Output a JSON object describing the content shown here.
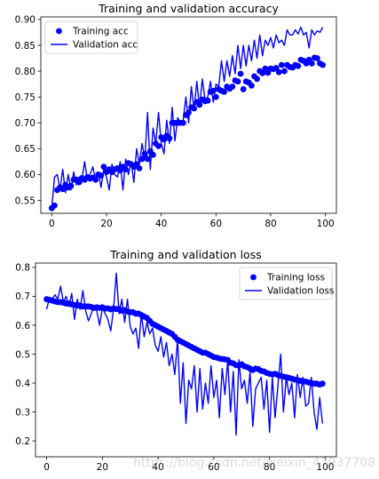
{
  "figure": {
    "watermark": "https://blog.csdn.net/weixin_43937708"
  },
  "chart_data": [
    {
      "type": "line",
      "title": "Training and validation accuracy",
      "xlim": [
        -4,
        104
      ],
      "ylim": [
        0.525,
        0.905
      ],
      "xticks": [
        "0",
        "20",
        "40",
        "60",
        "80",
        "100"
      ],
      "yticks": [
        "0.55",
        "0.60",
        "0.65",
        "0.70",
        "0.75",
        "0.80",
        "0.85",
        "0.90"
      ],
      "legend_position": "upper-left",
      "series": [
        {
          "name": "Training acc",
          "style": "dots",
          "color": "#0000ff",
          "x_start": 0,
          "x_step": 1,
          "values": [
            0.535,
            0.54,
            0.57,
            0.575,
            0.572,
            0.58,
            0.575,
            0.578,
            0.59,
            0.59,
            0.585,
            0.593,
            0.59,
            0.595,
            0.592,
            0.594,
            0.59,
            0.6,
            0.598,
            0.615,
            0.605,
            0.61,
            0.605,
            0.61,
            0.612,
            0.608,
            0.615,
            0.61,
            0.622,
            0.62,
            0.615,
            0.62,
            0.612,
            0.63,
            0.64,
            0.63,
            0.645,
            0.638,
            0.66,
            0.655,
            0.672,
            0.668,
            0.675,
            0.67,
            0.7,
            0.7,
            0.7,
            0.7,
            0.7,
            0.715,
            0.72,
            0.73,
            0.728,
            0.74,
            0.735,
            0.745,
            0.742,
            0.743,
            0.76,
            0.762,
            0.75,
            0.765,
            0.762,
            0.76,
            0.77,
            0.766,
            0.77,
            0.782,
            0.78,
            0.795,
            0.765,
            0.78,
            0.778,
            0.772,
            0.79,
            0.785,
            0.8,
            0.796,
            0.805,
            0.797,
            0.805,
            0.804,
            0.806,
            0.798,
            0.812,
            0.8,
            0.812,
            0.808,
            0.807,
            0.812,
            0.81,
            0.822,
            0.82,
            0.815,
            0.822,
            0.815,
            0.826,
            0.825,
            0.815,
            0.812
          ]
        },
        {
          "name": "Validation acc",
          "style": "line",
          "color": "#0000ff",
          "x_start": 0,
          "x_step": 1,
          "values": [
            0.535,
            0.595,
            0.6,
            0.57,
            0.61,
            0.565,
            0.6,
            0.57,
            0.605,
            0.58,
            0.595,
            0.59,
            0.625,
            0.59,
            0.6,
            0.615,
            0.59,
            0.605,
            0.575,
            0.61,
            0.595,
            0.57,
            0.62,
            0.6,
            0.595,
            0.625,
            0.57,
            0.63,
            0.6,
            0.625,
            0.585,
            0.65,
            0.62,
            0.66,
            0.63,
            0.72,
            0.61,
            0.69,
            0.66,
            0.72,
            0.66,
            0.64,
            0.705,
            0.66,
            0.73,
            0.665,
            0.71,
            0.7,
            0.705,
            0.75,
            0.7,
            0.77,
            0.725,
            0.78,
            0.73,
            0.785,
            0.745,
            0.75,
            0.78,
            0.74,
            0.775,
            0.77,
            0.82,
            0.78,
            0.82,
            0.79,
            0.83,
            0.795,
            0.85,
            0.805,
            0.85,
            0.81,
            0.85,
            0.82,
            0.86,
            0.825,
            0.87,
            0.83,
            0.86,
            0.85,
            0.865,
            0.845,
            0.87,
            0.855,
            0.86,
            0.85,
            0.88,
            0.87,
            0.87,
            0.88,
            0.872,
            0.885,
            0.87,
            0.875,
            0.845,
            0.88,
            0.87,
            0.878,
            0.875,
            0.885
          ]
        }
      ]
    },
    {
      "type": "line",
      "title": "Training and validation loss",
      "xlim": [
        -4,
        104
      ],
      "ylim": [
        0.145,
        0.815
      ],
      "xticks": [
        "0",
        "20",
        "40",
        "60",
        "80",
        "100"
      ],
      "yticks": [
        "0.2",
        "0.3",
        "0.4",
        "0.5",
        "0.6",
        "0.7",
        "0.8"
      ],
      "legend_position": "upper-right",
      "series": [
        {
          "name": "Training loss",
          "style": "dots",
          "color": "#0000ff",
          "x_start": 0,
          "x_step": 1,
          "values": [
            0.69,
            0.688,
            0.685,
            0.682,
            0.68,
            0.68,
            0.678,
            0.675,
            0.675,
            0.672,
            0.67,
            0.668,
            0.668,
            0.665,
            0.665,
            0.665,
            0.663,
            0.66,
            0.662,
            0.66,
            0.662,
            0.658,
            0.658,
            0.655,
            0.658,
            0.656,
            0.655,
            0.65,
            0.652,
            0.648,
            0.645,
            0.645,
            0.64,
            0.64,
            0.635,
            0.63,
            0.625,
            0.615,
            0.605,
            0.6,
            0.595,
            0.59,
            0.585,
            0.58,
            0.575,
            0.57,
            0.56,
            0.55,
            0.545,
            0.54,
            0.535,
            0.53,
            0.525,
            0.52,
            0.515,
            0.51,
            0.505,
            0.505,
            0.5,
            0.495,
            0.49,
            0.488,
            0.485,
            0.483,
            0.482,
            0.48,
            0.47,
            0.468,
            0.462,
            0.46,
            0.465,
            0.458,
            0.455,
            0.45,
            0.445,
            0.45,
            0.448,
            0.442,
            0.44,
            0.435,
            0.432,
            0.43,
            0.432,
            0.428,
            0.425,
            0.422,
            0.42,
            0.418,
            0.415,
            0.412,
            0.41,
            0.408,
            0.405,
            0.405,
            0.402,
            0.4,
            0.398,
            0.398,
            0.395,
            0.398
          ]
        },
        {
          "name": "Validation loss",
          "style": "line",
          "color": "#0000ff",
          "x_start": 0,
          "x_step": 1,
          "values": [
            0.655,
            0.695,
            0.69,
            0.705,
            0.69,
            0.735,
            0.68,
            0.7,
            0.665,
            0.71,
            0.62,
            0.69,
            0.655,
            0.72,
            0.65,
            0.615,
            0.64,
            0.665,
            0.65,
            0.6,
            0.66,
            0.64,
            0.62,
            0.58,
            0.655,
            0.78,
            0.64,
            0.69,
            0.61,
            0.69,
            0.595,
            0.57,
            0.59,
            0.52,
            0.64,
            0.56,
            0.61,
            0.57,
            0.59,
            0.53,
            0.51,
            0.56,
            0.49,
            0.54,
            0.46,
            0.5,
            0.43,
            0.55,
            0.33,
            0.47,
            0.26,
            0.41,
            0.38,
            0.46,
            0.3,
            0.45,
            0.31,
            0.4,
            0.33,
            0.46,
            0.35,
            0.41,
            0.28,
            0.45,
            0.36,
            0.48,
            0.3,
            0.44,
            0.22,
            0.48,
            0.38,
            0.41,
            0.33,
            0.44,
            0.25,
            0.38,
            0.4,
            0.42,
            0.31,
            0.41,
            0.23,
            0.42,
            0.28,
            0.39,
            0.5,
            0.3,
            0.42,
            0.36,
            0.4,
            0.28,
            0.43,
            0.35,
            0.42,
            0.32,
            0.33,
            0.42,
            0.3,
            0.24,
            0.35,
            0.26
          ]
        }
      ]
    }
  ]
}
